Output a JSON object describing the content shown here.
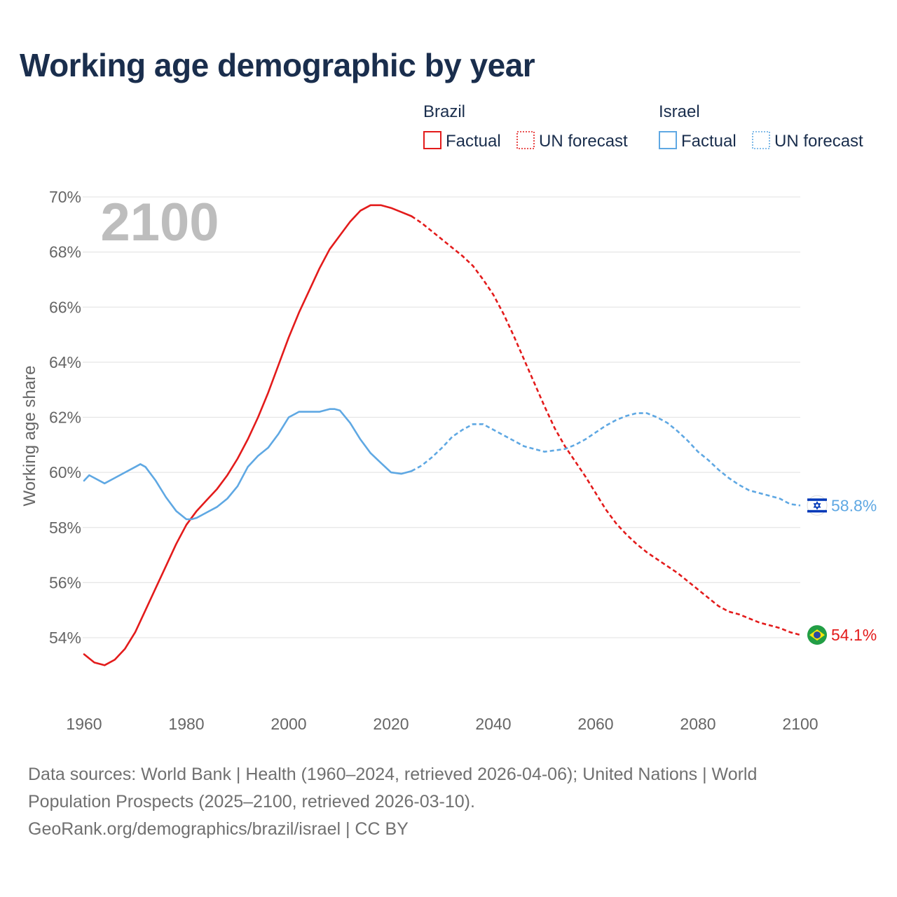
{
  "title": "Working age demographic by year",
  "year_overlay": "2100",
  "legend": {
    "groups": [
      {
        "name": "Brazil",
        "color": "#e31b1b",
        "factual_label": "Factual",
        "forecast_label": "UN forecast"
      },
      {
        "name": "Israel",
        "color": "#5fa8e3",
        "factual_label": "Factual",
        "forecast_label": "UN forecast"
      }
    ]
  },
  "footer": {
    "line1": "Data sources: World Bank | Health (1960–2024, retrieved 2026-04-06); United Nations | World",
    "line2": "Population Prospects (2025–2100, retrieved 2026-03-10).",
    "line3": "GeoRank.org/demographics/brazil/israel | CC BY"
  },
  "chart_data": {
    "type": "line",
    "title": "Working age demographic by year",
    "xlabel": "",
    "ylabel": "Working age share",
    "xlim": [
      1960,
      2100
    ],
    "ylim": [
      52,
      70
    ],
    "x_ticks": [
      1960,
      1980,
      2000,
      2020,
      2040,
      2060,
      2080,
      2100
    ],
    "x_tick_labels": [
      "1960",
      "1980",
      "2000",
      "2020",
      "2040",
      "2060",
      "2080",
      "2100"
    ],
    "y_ticks": [
      54,
      56,
      58,
      60,
      62,
      64,
      66,
      68,
      70
    ],
    "y_tick_labels": [
      "54%",
      "56%",
      "58%",
      "60%",
      "62%",
      "64%",
      "66%",
      "68%",
      "70%"
    ],
    "factual_end_year": 2024,
    "series": [
      {
        "name": "Brazil",
        "color": "#e31b1b",
        "end_label": "54.1%",
        "flag": "brazil",
        "x": [
          1960,
          1962,
          1964,
          1966,
          1968,
          1970,
          1972,
          1974,
          1976,
          1978,
          1980,
          1982,
          1984,
          1986,
          1988,
          1990,
          1992,
          1994,
          1996,
          1998,
          2000,
          2002,
          2004,
          2006,
          2008,
          2010,
          2012,
          2014,
          2016,
          2018,
          2020,
          2022,
          2024,
          2026,
          2028,
          2030,
          2032,
          2034,
          2036,
          2038,
          2040,
          2042,
          2044,
          2046,
          2048,
          2050,
          2052,
          2054,
          2056,
          2058,
          2060,
          2062,
          2064,
          2066,
          2068,
          2070,
          2072,
          2074,
          2076,
          2078,
          2080,
          2082,
          2084,
          2086,
          2088,
          2090,
          2092,
          2094,
          2096,
          2098,
          2100
        ],
        "values": [
          53.4,
          53.1,
          53.0,
          53.2,
          53.6,
          54.2,
          55.0,
          55.8,
          56.6,
          57.4,
          58.1,
          58.6,
          59.0,
          59.4,
          59.9,
          60.5,
          61.2,
          62.0,
          62.9,
          63.9,
          64.9,
          65.8,
          66.6,
          67.4,
          68.1,
          68.6,
          69.1,
          69.5,
          69.7,
          69.7,
          69.6,
          69.45,
          69.3,
          69.05,
          68.75,
          68.45,
          68.15,
          67.85,
          67.5,
          67.0,
          66.45,
          65.75,
          64.95,
          64.1,
          63.25,
          62.4,
          61.6,
          60.95,
          60.4,
          59.85,
          59.25,
          58.65,
          58.15,
          57.75,
          57.4,
          57.1,
          56.85,
          56.6,
          56.35,
          56.05,
          55.75,
          55.45,
          55.15,
          54.95,
          54.85,
          54.7,
          54.55,
          54.45,
          54.35,
          54.2,
          54.1
        ]
      },
      {
        "name": "Israel",
        "color": "#5fa8e3",
        "end_label": "58.8%",
        "flag": "israel",
        "x": [
          1960,
          1961,
          1962,
          1964,
          1966,
          1968,
          1970,
          1971,
          1972,
          1974,
          1976,
          1978,
          1980,
          1981,
          1982,
          1984,
          1986,
          1988,
          1990,
          1992,
          1994,
          1996,
          1998,
          2000,
          2002,
          2004,
          2006,
          2008,
          2009,
          2010,
          2012,
          2014,
          2016,
          2018,
          2020,
          2022,
          2024,
          2026,
          2028,
          2030,
          2032,
          2034,
          2036,
          2038,
          2040,
          2042,
          2044,
          2046,
          2048,
          2050,
          2052,
          2054,
          2056,
          2058,
          2060,
          2062,
          2064,
          2066,
          2068,
          2070,
          2072,
          2074,
          2076,
          2078,
          2080,
          2082,
          2084,
          2086,
          2088,
          2090,
          2092,
          2094,
          2096,
          2098,
          2100
        ],
        "values": [
          59.7,
          59.9,
          59.8,
          59.6,
          59.8,
          60.0,
          60.2,
          60.3,
          60.2,
          59.7,
          59.1,
          58.6,
          58.3,
          58.3,
          58.35,
          58.55,
          58.75,
          59.05,
          59.5,
          60.2,
          60.6,
          60.9,
          61.4,
          62.0,
          62.2,
          62.2,
          62.2,
          62.3,
          62.3,
          62.25,
          61.8,
          61.2,
          60.7,
          60.35,
          60.0,
          59.95,
          60.05,
          60.25,
          60.55,
          60.9,
          61.3,
          61.55,
          61.75,
          61.75,
          61.55,
          61.35,
          61.15,
          60.95,
          60.85,
          60.75,
          60.8,
          60.85,
          61.0,
          61.2,
          61.45,
          61.7,
          61.9,
          62.05,
          62.15,
          62.15,
          62.0,
          61.8,
          61.5,
          61.15,
          60.75,
          60.45,
          60.1,
          59.8,
          59.55,
          59.35,
          59.25,
          59.15,
          59.05,
          58.85,
          58.8
        ]
      }
    ]
  }
}
